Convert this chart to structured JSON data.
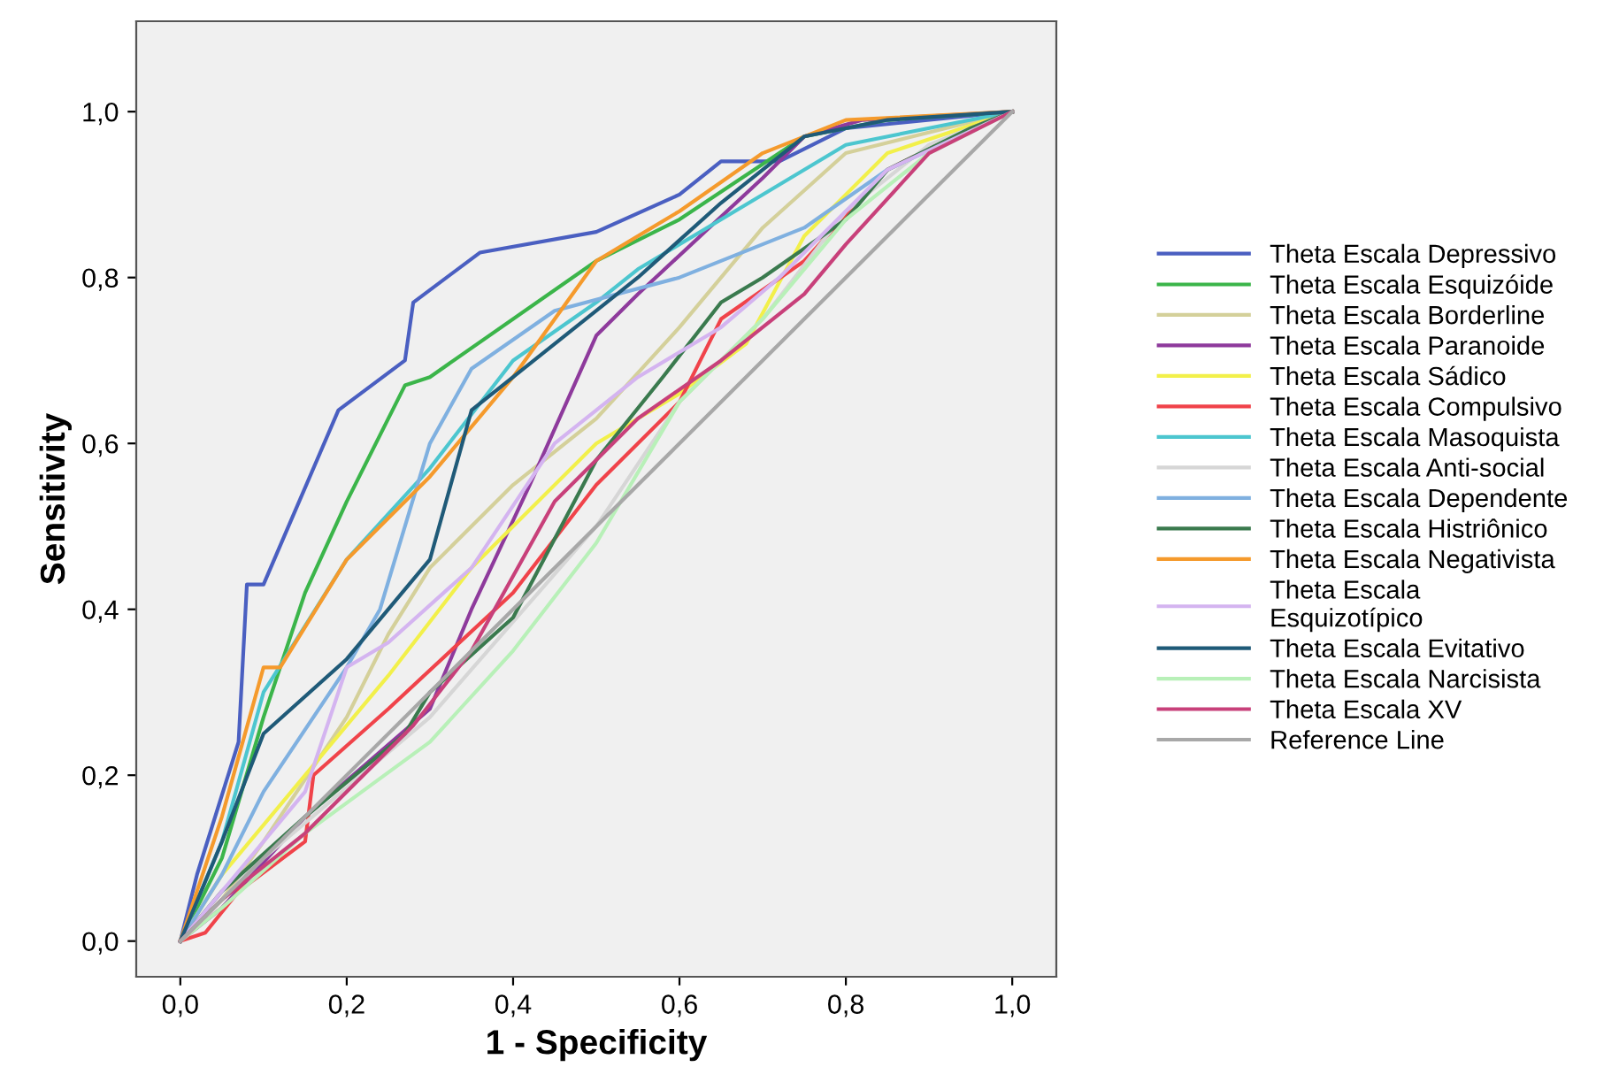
{
  "chart_data": {
    "type": "line",
    "xlabel": "1 - Specificity",
    "ylabel": "Sensitivity",
    "xlim": [
      -0.053,
      1.053
    ],
    "ylim": [
      -0.043,
      1.109
    ],
    "xticks": [
      {
        "value": 0,
        "label": "0,0"
      },
      {
        "value": 0.2,
        "label": "0,2"
      },
      {
        "value": 0.4,
        "label": "0,4"
      },
      {
        "value": 0.6,
        "label": "0,6"
      },
      {
        "value": 0.8,
        "label": "0,8"
      },
      {
        "value": 1,
        "label": "1,0"
      }
    ],
    "yticks": [
      {
        "value": 0,
        "label": "0,0"
      },
      {
        "value": 0.2,
        "label": "0,2"
      },
      {
        "value": 0.4,
        "label": "0,4"
      },
      {
        "value": 0.6,
        "label": "0,6"
      },
      {
        "value": 0.8,
        "label": "0,8"
      },
      {
        "value": 1,
        "label": "1,0"
      }
    ],
    "grid": false,
    "legend": "right",
    "marker": "none",
    "line_style": "solid",
    "series": [
      {
        "name": "Theta Escala Depressivo",
        "color": "#4a5fc1",
        "x": [
          0,
          0.02,
          0.07,
          0.08,
          0.1,
          0.13,
          0.19,
          0.27,
          0.28,
          0.36,
          0.5,
          0.6,
          0.65,
          0.72,
          0.8,
          1
        ],
        "values": [
          0,
          0.08,
          0.24,
          0.43,
          0.43,
          0.5,
          0.64,
          0.7,
          0.77,
          0.83,
          0.855,
          0.9,
          0.94,
          0.94,
          0.98,
          1
        ]
      },
      {
        "name": "Theta Escala Esquizóide",
        "color": "#3bb54a",
        "x": [
          0,
          0.05,
          0.1,
          0.15,
          0.2,
          0.27,
          0.3,
          0.5,
          0.6,
          0.75,
          0.85,
          1
        ],
        "values": [
          0,
          0.1,
          0.27,
          0.42,
          0.53,
          0.67,
          0.68,
          0.82,
          0.87,
          0.97,
          0.99,
          1
        ]
      },
      {
        "name": "Theta Escala Borderline",
        "color": "#d4d09a",
        "x": [
          0,
          0.05,
          0.1,
          0.2,
          0.25,
          0.3,
          0.4,
          0.5,
          0.6,
          0.7,
          0.8,
          1
        ],
        "values": [
          0,
          0.05,
          0.12,
          0.27,
          0.37,
          0.45,
          0.55,
          0.63,
          0.74,
          0.86,
          0.95,
          1
        ]
      },
      {
        "name": "Theta Escala Paranoide",
        "color": "#8e3a9c",
        "x": [
          0,
          0.05,
          0.15,
          0.3,
          0.35,
          0.42,
          0.5,
          0.55,
          0.7,
          0.75,
          0.82,
          1
        ],
        "values": [
          0,
          0.04,
          0.15,
          0.28,
          0.4,
          0.55,
          0.73,
          0.78,
          0.92,
          0.97,
          0.99,
          1
        ]
      },
      {
        "name": "Theta Escala Sádico",
        "color": "#f2f04a",
        "x": [
          0,
          0.05,
          0.15,
          0.25,
          0.35,
          0.5,
          0.6,
          0.68,
          0.75,
          0.85,
          1
        ],
        "values": [
          0,
          0.08,
          0.2,
          0.32,
          0.45,
          0.6,
          0.66,
          0.72,
          0.85,
          0.95,
          1
        ]
      },
      {
        "name": "Theta Escala Compulsivo",
        "color": "#f0434a",
        "x": [
          0,
          0.03,
          0.07,
          0.15,
          0.16,
          0.25,
          0.4,
          0.5,
          0.6,
          0.65,
          0.75,
          0.85,
          0.95,
          1
        ],
        "values": [
          0,
          0.01,
          0.06,
          0.12,
          0.2,
          0.28,
          0.42,
          0.55,
          0.65,
          0.75,
          0.82,
          0.93,
          0.98,
          1
        ]
      },
      {
        "name": "Theta Escala Masoquista",
        "color": "#4cc6cf",
        "x": [
          0,
          0.05,
          0.1,
          0.2,
          0.3,
          0.4,
          0.5,
          0.55,
          0.7,
          0.8,
          1
        ],
        "values": [
          0,
          0.12,
          0.3,
          0.46,
          0.57,
          0.7,
          0.77,
          0.81,
          0.9,
          0.96,
          1
        ]
      },
      {
        "name": "Theta Escala Anti-social",
        "color": "#d6d6d6",
        "x": [
          0,
          0.1,
          0.3,
          0.5,
          0.6,
          0.7,
          0.8,
          0.9,
          1
        ],
        "values": [
          0,
          0.1,
          0.27,
          0.5,
          0.65,
          0.75,
          0.88,
          0.96,
          1
        ]
      },
      {
        "name": "Theta Escala Dependente",
        "color": "#7fb0e0",
        "x": [
          0,
          0.05,
          0.1,
          0.2,
          0.24,
          0.3,
          0.35,
          0.45,
          0.6,
          0.75,
          0.85,
          1
        ],
        "values": [
          0,
          0.08,
          0.18,
          0.33,
          0.4,
          0.6,
          0.69,
          0.76,
          0.8,
          0.86,
          0.93,
          1
        ]
      },
      {
        "name": "Theta Escala Histriônico",
        "color": "#3a7a4e",
        "x": [
          0,
          0.05,
          0.15,
          0.27,
          0.3,
          0.4,
          0.5,
          0.58,
          0.65,
          0.7,
          0.8,
          0.85,
          0.95,
          1
        ],
        "values": [
          0,
          0.06,
          0.15,
          0.25,
          0.3,
          0.39,
          0.58,
          0.68,
          0.77,
          0.8,
          0.87,
          0.93,
          0.98,
          1
        ]
      },
      {
        "name": "Theta Escala Negativista",
        "color": "#f59a2c",
        "x": [
          0,
          0.05,
          0.1,
          0.12,
          0.2,
          0.3,
          0.4,
          0.5,
          0.6,
          0.7,
          0.8,
          1
        ],
        "values": [
          0,
          0.15,
          0.33,
          0.33,
          0.46,
          0.56,
          0.68,
          0.82,
          0.88,
          0.95,
          0.99,
          1
        ]
      },
      {
        "name": "Theta Escala Esquizotípico",
        "color": "#d4b4f0",
        "x": [
          0,
          0.05,
          0.15,
          0.2,
          0.25,
          0.35,
          0.45,
          0.55,
          0.65,
          0.72,
          0.85,
          1
        ],
        "values": [
          0,
          0.06,
          0.18,
          0.33,
          0.36,
          0.45,
          0.6,
          0.68,
          0.74,
          0.8,
          0.93,
          1
        ]
      },
      {
        "name": "Theta Escala Evitativo",
        "color": "#1f5a78",
        "x": [
          0,
          0.05,
          0.1,
          0.2,
          0.3,
          0.35,
          0.45,
          0.55,
          0.65,
          0.75,
          0.85,
          1
        ],
        "values": [
          0,
          0.12,
          0.25,
          0.34,
          0.46,
          0.64,
          0.72,
          0.8,
          0.89,
          0.97,
          0.99,
          1
        ]
      },
      {
        "name": "Theta Escala Narcisista",
        "color": "#b8f0b8",
        "x": [
          0,
          0.05,
          0.15,
          0.3,
          0.4,
          0.5,
          0.6,
          0.7,
          0.8,
          0.9,
          1
        ],
        "values": [
          0,
          0.04,
          0.13,
          0.24,
          0.35,
          0.48,
          0.65,
          0.75,
          0.87,
          0.95,
          1
        ]
      },
      {
        "name": "Theta Escala XV",
        "color": "#c8407a",
        "x": [
          0,
          0.05,
          0.15,
          0.28,
          0.35,
          0.45,
          0.55,
          0.65,
          0.75,
          0.8,
          0.9,
          1
        ],
        "values": [
          0,
          0.05,
          0.13,
          0.26,
          0.35,
          0.53,
          0.63,
          0.7,
          0.78,
          0.84,
          0.95,
          1
        ]
      },
      {
        "name": "Reference Line",
        "color": "#a8a8a8",
        "x": [
          0,
          1
        ],
        "values": [
          0,
          1
        ]
      }
    ]
  }
}
